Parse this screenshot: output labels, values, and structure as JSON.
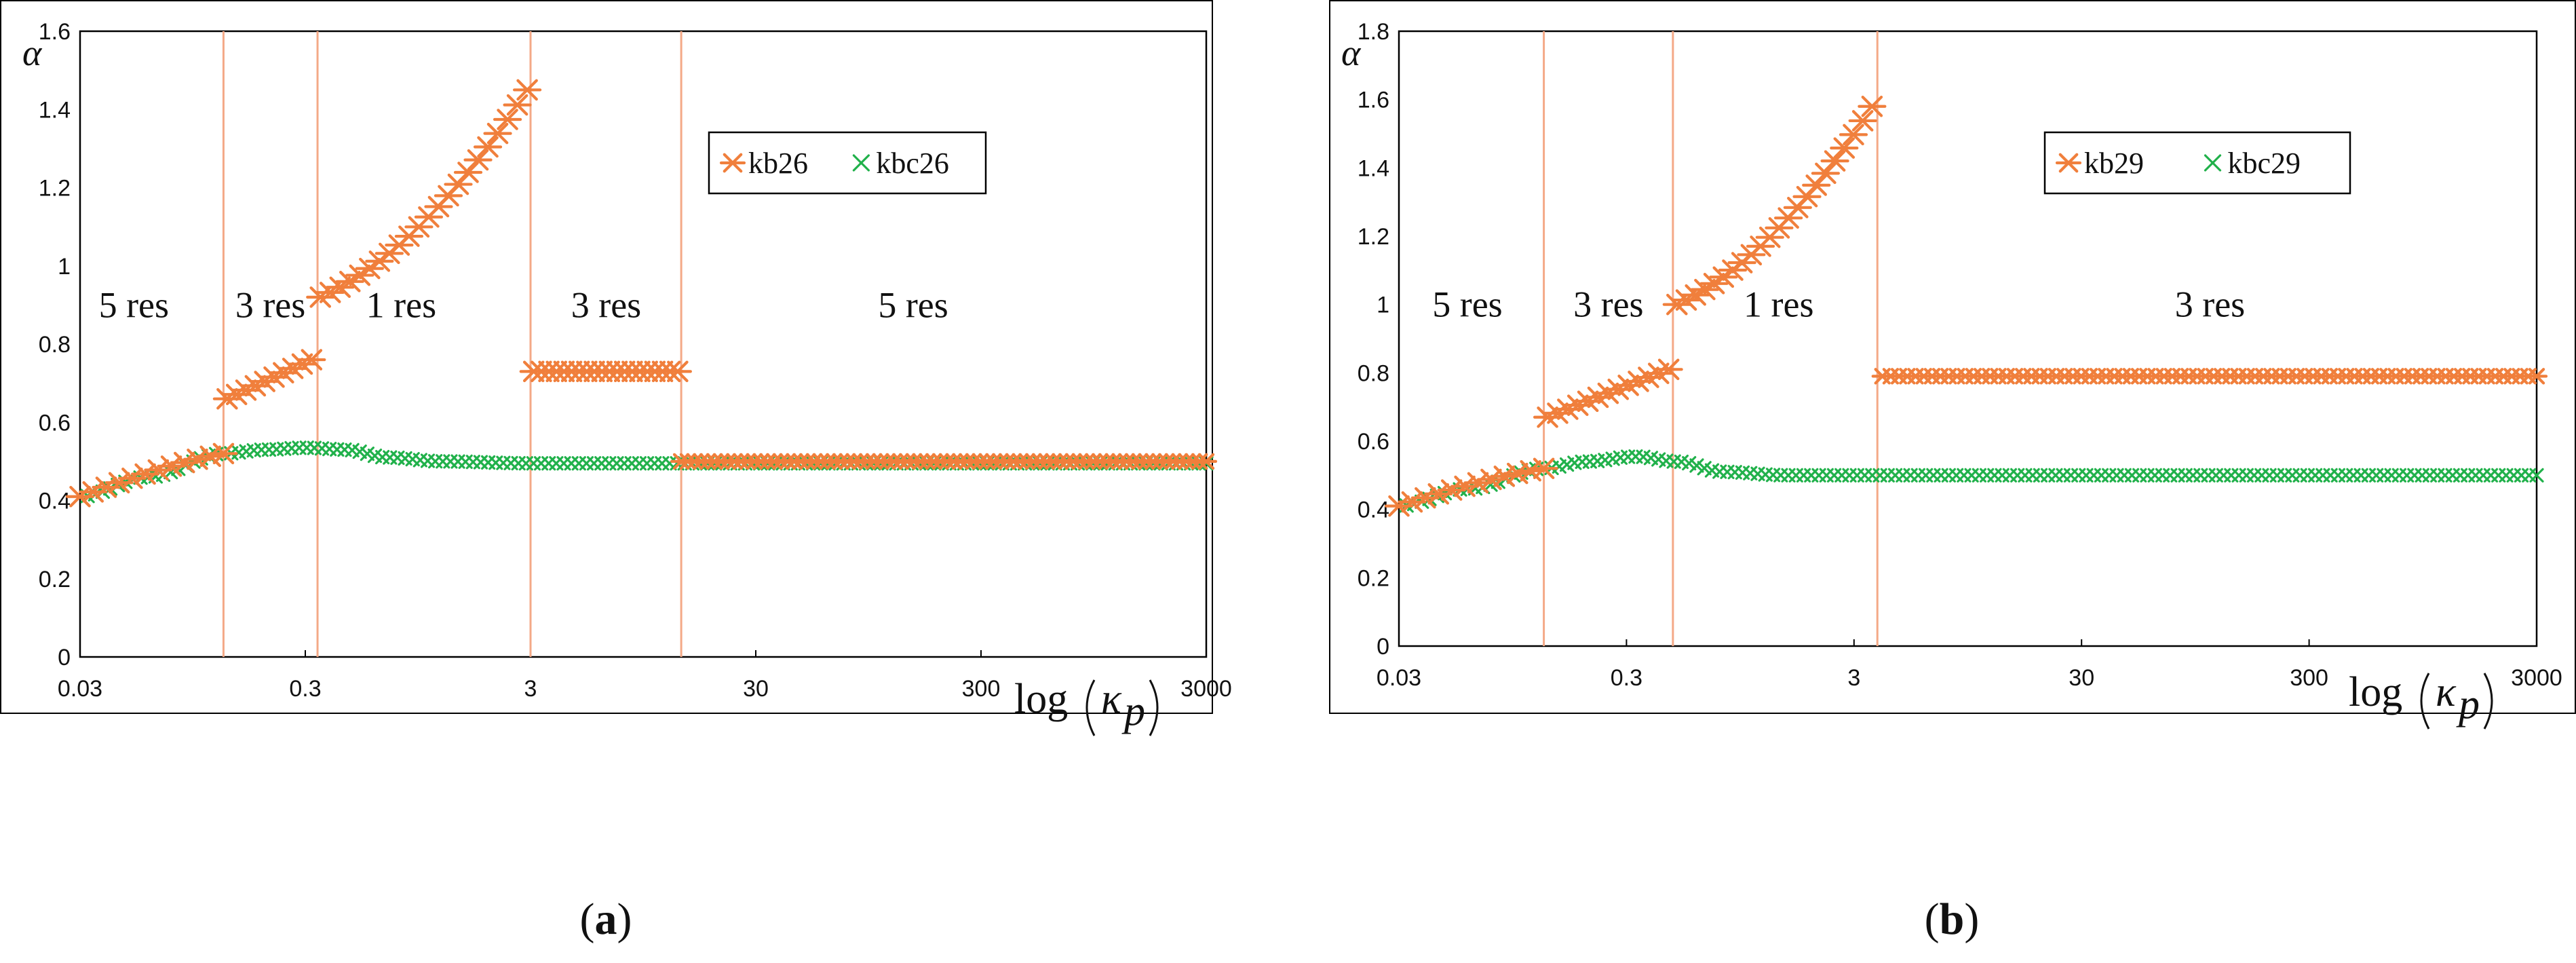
{
  "colors": {
    "kb": "#f07f3c",
    "kbc": "#21b14b",
    "divider": "#f4a987",
    "frame": "#000000"
  },
  "chart_data": [
    {
      "type": "scatter",
      "panel": "a",
      "caption": {
        "open": "(",
        "letter": "a",
        "close": ")"
      },
      "ylabel": "α",
      "xlabel": {
        "prefix": "log",
        "var": "κ",
        "sub": "p"
      },
      "xscale": "log",
      "xlim": [
        0.03,
        3000
      ],
      "ylim": [
        0,
        1.6
      ],
      "yticks": [
        "0",
        "0.2",
        "0.4",
        "0.6",
        "0.8",
        "1",
        "1.2",
        "1.4",
        "1.6"
      ],
      "xticks": [
        "0.03",
        "0.3",
        "3",
        "30",
        "300",
        "3000"
      ],
      "legend": [
        "kb26",
        "kbc26"
      ],
      "dividers": [
        0.13,
        0.34,
        3.0,
        14.0
      ],
      "regions": [
        {
          "label": "5 res",
          "x": 0.052,
          "y": 0.9
        },
        {
          "label": "3 res",
          "x": 0.21,
          "y": 0.9
        },
        {
          "label": "1 res",
          "x": 0.8,
          "y": 0.9
        },
        {
          "label": "3 res",
          "x": 6.5,
          "y": 0.9
        },
        {
          "label": "5 res",
          "x": 150,
          "y": 0.9
        }
      ],
      "series": [
        {
          "name": "kb26",
          "color": "kb",
          "marker": "asterisk",
          "segments": [
            {
              "x0": 0.03,
              "x1": 0.13,
              "y0": 0.41,
              "y1": 0.52,
              "n": 12,
              "mode": "smooth"
            },
            {
              "x0": 0.135,
              "x1": 0.32,
              "y0": 0.66,
              "y1": 0.76,
              "n": 10,
              "mode": "linear"
            },
            {
              "x0": 0.35,
              "x1": 2.9,
              "y0": 0.92,
              "y1": 1.45,
              "n": 22,
              "mode": "convex"
            },
            {
              "x0": 3.1,
              "x1": 13.5,
              "y0": 0.73,
              "y1": 0.73,
              "n": 20,
              "mode": "linear"
            },
            {
              "x0": 14.0,
              "x1": 3000,
              "y0": 0.5,
              "y1": 0.5,
              "n": 80,
              "mode": "linear"
            }
          ]
        },
        {
          "name": "kbc26",
          "color": "kbc",
          "marker": "cross",
          "curve": [
            [
              0.03,
              0.41
            ],
            [
              0.06,
              0.46
            ],
            [
              0.13,
              0.52
            ],
            [
              0.2,
              0.53
            ],
            [
              0.3,
              0.535
            ],
            [
              0.45,
              0.53
            ],
            [
              0.7,
              0.51
            ],
            [
              1.2,
              0.5
            ],
            [
              3,
              0.495
            ],
            [
              3000,
              0.495
            ]
          ],
          "n": 150
        }
      ]
    },
    {
      "type": "scatter",
      "panel": "b",
      "caption": {
        "open": "(",
        "letter": "b",
        "close": ")"
      },
      "ylabel": "α",
      "xlabel": {
        "prefix": "log",
        "var": "κ",
        "sub": "p"
      },
      "xscale": "log",
      "xlim": [
        0.03,
        3000
      ],
      "ylim": [
        0,
        1.8
      ],
      "yticks": [
        "0",
        "0.2",
        "0.4",
        "0.6",
        "0.8",
        "1",
        "1.2",
        "1.4",
        "1.6",
        "1.8"
      ],
      "xticks": [
        "0.03",
        "0.3",
        "3",
        "30",
        "300",
        "3000"
      ],
      "legend": [
        "kb29",
        "kbc29"
      ],
      "dividers": [
        0.13,
        0.48,
        3.8
      ],
      "regions": [
        {
          "label": "5 res",
          "x": 0.06,
          "y": 1.0
        },
        {
          "label": "3 res",
          "x": 0.25,
          "y": 1.0
        },
        {
          "label": "1 res",
          "x": 1.4,
          "y": 1.0
        },
        {
          "label": "3 res",
          "x": 110,
          "y": 1.0
        }
      ],
      "series": [
        {
          "name": "kb29",
          "color": "kb",
          "marker": "asterisk",
          "segments": [
            {
              "x0": 0.03,
              "x1": 0.13,
              "y0": 0.41,
              "y1": 0.52,
              "n": 12,
              "mode": "smooth"
            },
            {
              "x0": 0.135,
              "x1": 0.46,
              "y0": 0.67,
              "y1": 0.81,
              "n": 13,
              "mode": "linear"
            },
            {
              "x0": 0.5,
              "x1": 3.6,
              "y0": 1.0,
              "y1": 1.58,
              "n": 22,
              "mode": "convex"
            },
            {
              "x0": 4.0,
              "x1": 3000,
              "y0": 0.79,
              "y1": 0.79,
              "n": 80,
              "mode": "linear"
            }
          ]
        },
        {
          "name": "kbc29",
          "color": "kbc",
          "marker": "cross",
          "curve": [
            [
              0.03,
              0.41
            ],
            [
              0.06,
              0.46
            ],
            [
              0.13,
              0.52
            ],
            [
              0.2,
              0.54
            ],
            [
              0.33,
              0.555
            ],
            [
              0.5,
              0.54
            ],
            [
              0.8,
              0.51
            ],
            [
              1.5,
              0.5
            ],
            [
              3,
              0.5
            ],
            [
              3000,
              0.5
            ]
          ],
          "n": 150
        }
      ]
    }
  ]
}
